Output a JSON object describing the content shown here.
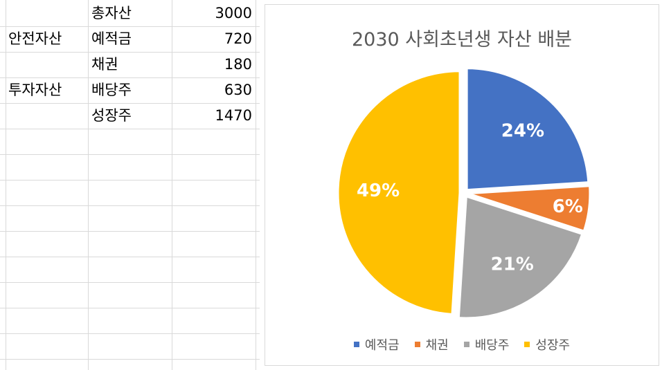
{
  "sheet": {
    "rows": [
      {
        "group": "",
        "item": "총자산",
        "value": "3000"
      },
      {
        "group": "안전자산",
        "item": "예적금",
        "value": "720"
      },
      {
        "group": "",
        "item": "채권",
        "value": "180"
      },
      {
        "group": "투자자산",
        "item": "배당주",
        "value": "630"
      },
      {
        "group": "",
        "item": "성장주",
        "value": "1470"
      }
    ]
  },
  "chart_data": {
    "type": "pie",
    "title": "2030 사회초년생 자산 배분",
    "categories": [
      "예적금",
      "채권",
      "배당주",
      "성장주"
    ],
    "values": [
      720,
      180,
      630,
      1470
    ],
    "data_labels": [
      "24%",
      "6%",
      "21%",
      "49%"
    ],
    "colors": [
      "#4472c4",
      "#ed7d31",
      "#a5a5a5",
      "#ffc000"
    ],
    "legend_position": "bottom"
  }
}
